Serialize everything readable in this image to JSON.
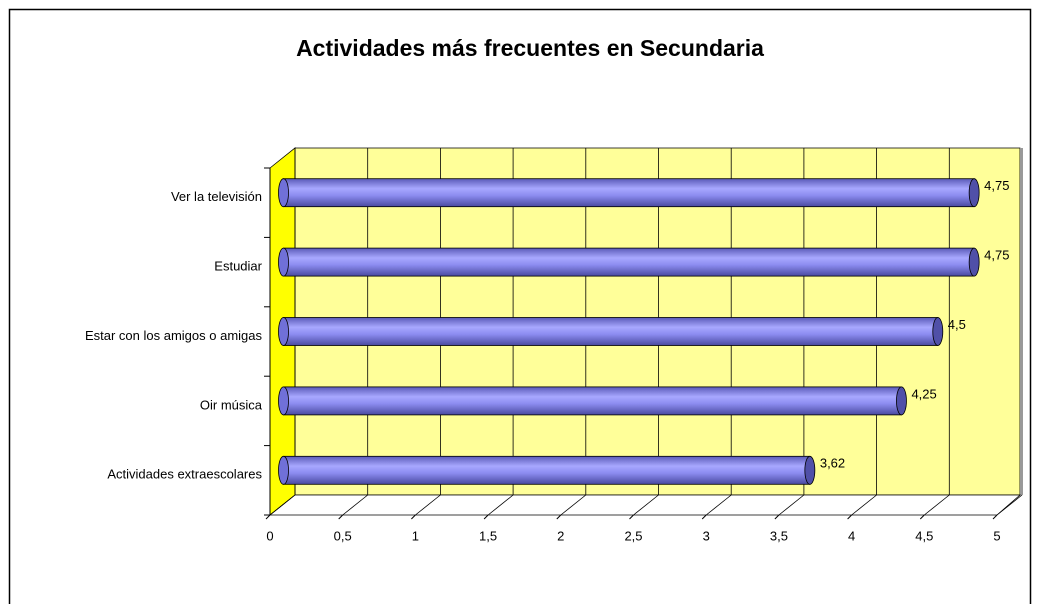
{
  "chart_data": {
    "type": "bar3d",
    "orientation": "horizontal",
    "title": "Actividades más frecuentes en Secundaria",
    "categories": [
      "Ver la televisión",
      "Estudiar",
      "Estar con los amigos o amigas",
      "Oir música",
      "Actividades extraescolares"
    ],
    "values": [
      4.75,
      4.75,
      4.5,
      4.25,
      3.62
    ],
    "value_labels": [
      "4,75",
      "4,75",
      "4,5",
      "4,25",
      "3,62"
    ],
    "color": "#8080ff",
    "xlim": [
      0,
      5
    ],
    "xticks": [
      0,
      {
        "value": 0.5,
        "label": "0,5"
      },
      1,
      {
        "value": 1.5,
        "label": "1,5"
      },
      2,
      {
        "value": 2.5,
        "label": "2,5"
      },
      3,
      {
        "value": 3.5,
        "label": "3,5"
      },
      4,
      {
        "value": 4.5,
        "label": "4,5"
      },
      5
    ],
    "grid": true
  }
}
